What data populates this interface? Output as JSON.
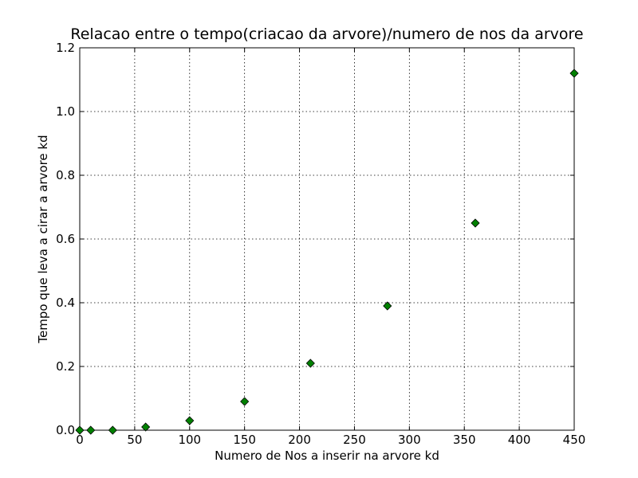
{
  "chart_data": {
    "type": "scatter",
    "title": "Relacao entre o tempo(criacao da arvore)/numero de nos da arvore",
    "xlabel": "Numero de Nos a inserir na arvore kd",
    "ylabel": "Tempo que leva a cirar a arvore kd",
    "xlim": [
      0,
      450
    ],
    "ylim": [
      0,
      1.2
    ],
    "xticks": [
      0,
      50,
      100,
      150,
      200,
      250,
      300,
      350,
      400,
      450
    ],
    "xtick_labels": [
      "0",
      "50",
      "100",
      "150",
      "200",
      "250",
      "300",
      "350",
      "400",
      "450"
    ],
    "yticks": [
      0.0,
      0.2,
      0.4,
      0.6,
      0.8,
      1.0,
      1.2
    ],
    "ytick_labels": [
      "0.0",
      "0.2",
      "0.4",
      "0.6",
      "0.8",
      "1.0",
      "1.2"
    ],
    "grid": true,
    "marker": "diamond",
    "marker_color": "#008000",
    "points": [
      {
        "x": 0,
        "y": 0.0
      },
      {
        "x": 10,
        "y": 0.0
      },
      {
        "x": 30,
        "y": 0.0
      },
      {
        "x": 60,
        "y": 0.01
      },
      {
        "x": 100,
        "y": 0.03
      },
      {
        "x": 150,
        "y": 0.09
      },
      {
        "x": 210,
        "y": 0.21
      },
      {
        "x": 280,
        "y": 0.39
      },
      {
        "x": 360,
        "y": 0.65
      },
      {
        "x": 450,
        "y": 1.12
      }
    ]
  }
}
